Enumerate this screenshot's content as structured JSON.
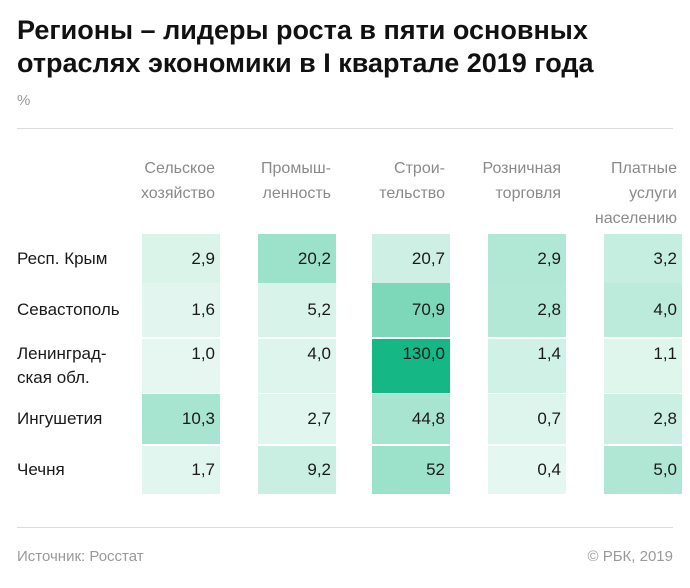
{
  "title": "Регионы – лидеры роста в пяти основных отраслях экономики в I квартале 2019 года",
  "unit": "%",
  "footer": {
    "source": "Источник: Росстат",
    "copyright": "© РБК, 2019"
  },
  "colors": {
    "highlight_max": "#15b884",
    "highlight_light": "#e6f7f0"
  },
  "chart_data": {
    "type": "table",
    "title": "Регионы – лидеры роста в пяти основных отраслях экономики в I квартале 2019 года",
    "unit": "%",
    "columns": [
      [
        "Сельское",
        "хозяйство"
      ],
      [
        "Промыш-",
        "ленность"
      ],
      [
        "Строи-",
        "тельство"
      ],
      [
        "Розничная",
        "торговля"
      ],
      [
        "Платные",
        "услуги",
        "населению"
      ]
    ],
    "rows": [
      {
        "label": [
          "Респ. Крым"
        ],
        "values": [
          2.9,
          20.2,
          20.7,
          2.9,
          3.2
        ],
        "display": [
          "2,9",
          "20,2",
          "20,7",
          "2,9",
          "3,2"
        ]
      },
      {
        "label": [
          "Севастополь"
        ],
        "values": [
          1.6,
          5.2,
          70.9,
          2.8,
          4.0
        ],
        "display": [
          "1,6",
          "5,2",
          "70,9",
          "2,8",
          "4,0"
        ]
      },
      {
        "label": [
          "Ленинград-",
          "ская обл."
        ],
        "values": [
          1.0,
          4.0,
          130.0,
          1.4,
          1.1
        ],
        "display": [
          "1,0",
          "4,0",
          "130,0",
          "1,4",
          "1,1"
        ]
      },
      {
        "label": [
          "Ингушетия"
        ],
        "values": [
          10.3,
          2.7,
          44.8,
          0.7,
          2.8
        ],
        "display": [
          "10,3",
          "2,7",
          "44,8",
          "0,7",
          "2,8"
        ]
      },
      {
        "label": [
          "Чечня"
        ],
        "values": [
          1.7,
          9.2,
          52,
          0.4,
          5.0
        ],
        "display": [
          "1,7",
          "9,2",
          "52",
          "0,4",
          "5,0"
        ]
      }
    ]
  }
}
